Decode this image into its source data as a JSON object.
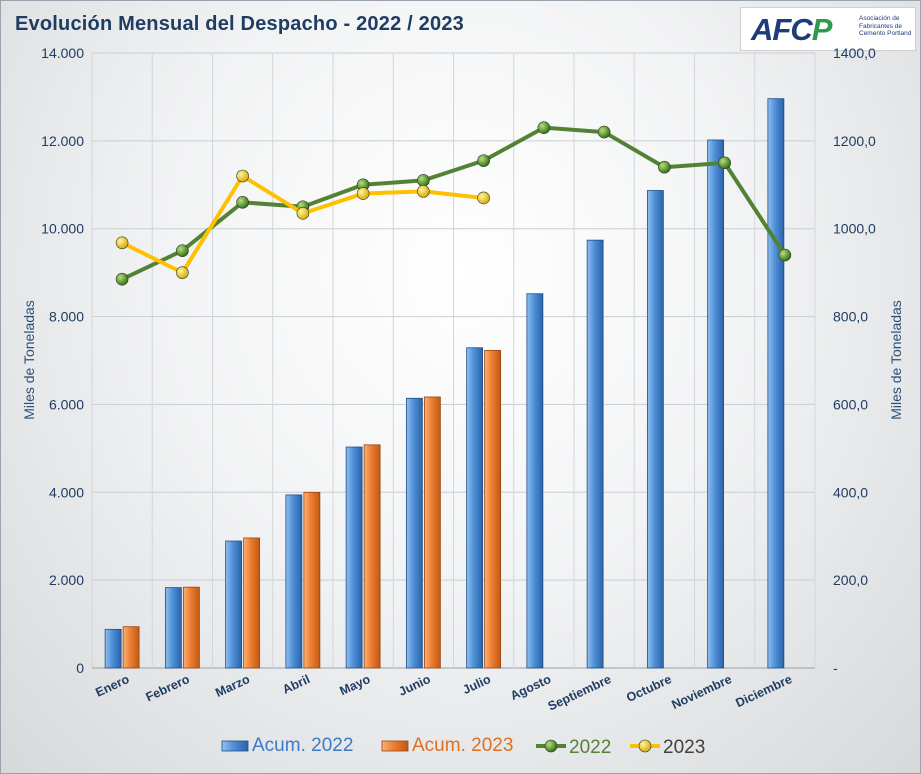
{
  "chart_data": {
    "type": "bar",
    "title": "Evolución Mensual del Despacho - 2022 / 2023",
    "categories": [
      "Enero",
      "Febrero",
      "Marzo",
      "Abril",
      "Mayo",
      "Junio",
      "Julio",
      "Agosto",
      "Septiembre",
      "Octubre",
      "Noviembre",
      "Diciembre"
    ],
    "ylabel_left": "Miles de Toneladas",
    "ylabel_right": "Miles de Toneladas",
    "ylim_left": [
      0,
      14000
    ],
    "ylim_right": [
      0,
      1400
    ],
    "yticks_left": [
      "0",
      "2.000",
      "4.000",
      "6.000",
      "8.000",
      "10.000",
      "12.000",
      "14.000"
    ],
    "yticks_right": [
      "-",
      "200,0",
      "400,0",
      "600,0",
      "800,0",
      "1000,0",
      "1200,0",
      "1400,0"
    ],
    "grid": true,
    "legend_position": "bottom",
    "series": [
      {
        "name": "Acum. 2022",
        "type": "bar",
        "axis": "left",
        "color": "#4f8fd6",
        "values": [
          880,
          1830,
          2890,
          3940,
          5030,
          6140,
          7290,
          8520,
          9740,
          10870,
          12020,
          12960
        ]
      },
      {
        "name": "Acum. 2023",
        "type": "bar",
        "axis": "left",
        "color": "#ed7d31",
        "values": [
          940,
          1840,
          2960,
          4000,
          5080,
          6170,
          7230,
          null,
          null,
          null,
          null,
          null
        ]
      },
      {
        "name": "2022",
        "type": "line",
        "axis": "right",
        "color": "#548235",
        "marker_color": "#3f7a25",
        "values": [
          885,
          950,
          1060,
          1050,
          1100,
          1110,
          1155,
          1230,
          1220,
          1140,
          1150,
          940
        ]
      },
      {
        "name": "2023",
        "type": "line",
        "axis": "right",
        "color": "#ffc000",
        "marker_color": "#e6b800",
        "values": [
          968,
          900,
          1120,
          1035,
          1080,
          1085,
          1070,
          null,
          null,
          null,
          null,
          null
        ]
      }
    ]
  },
  "logo": {
    "mark_a": "AFC",
    "mark_o": "P",
    "text": "Asociación de Fabricantes de Cemento Portland"
  },
  "colors": {
    "title": "#1f3d63",
    "legend_2022_bar": "#3b7bc8",
    "legend_2023_bar": "#e07020",
    "legend_2022_line": "#548235",
    "legend_2023_line": "#404040"
  }
}
